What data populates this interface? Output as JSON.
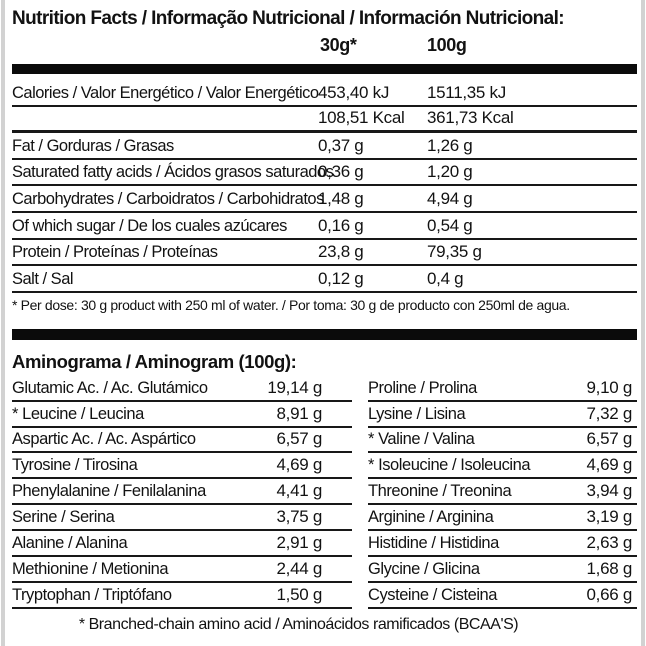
{
  "colors": {
    "bar": "#0b0b0b",
    "text": "#121212",
    "background": "#ffffff"
  },
  "label": {
    "title": "Nutrition Facts / Informação Nutricional / Información Nutricional:",
    "col_30": "30g*",
    "col_100": "100g",
    "nutrition_rows": [
      {
        "name": "Calories / Valor Energético / Valor Energético",
        "v30": "453,40 kJ",
        "v100": "1511,35 kJ"
      },
      {
        "name": "",
        "v30": "108,51 Kcal",
        "v100": "361,73 Kcal"
      },
      {
        "name": "Fat / Gorduras / Grasas",
        "v30": "0,37 g",
        "v100": "1,26 g"
      },
      {
        "name": "Saturated fatty acids / Ácidos grasos saturados",
        "v30": "0,36 g",
        "v100": "1,20 g"
      },
      {
        "name": "Carbohydrates / Carboidratos / Carbohidratos",
        "v30": "1,48 g",
        "v100": "4,94 g"
      },
      {
        "name": "Of which sugar / De los cuales azúcares",
        "v30": "0,16 g",
        "v100": "0,54 g"
      },
      {
        "name": "Protein / Proteínas / Proteínas",
        "v30": "23,8 g",
        "v100": "79,35 g"
      },
      {
        "name": "Salt / Sal",
        "v30": "0,12 g",
        "v100": "0,4 g"
      }
    ],
    "dose_note": "* Per dose: 30 g product with 250 ml of water. / Por toma: 30 g de producto con 250ml de agua.",
    "aminogram": {
      "title": "Aminograma / Aminogram (100g):",
      "left": [
        {
          "name": "Glutamic Ac. / Ac. Glutámico",
          "value": "19,14 g"
        },
        {
          "name": "* Leucine / Leucina",
          "value": "8,91 g"
        },
        {
          "name": "Aspartic Ac. / Ac. Aspártico",
          "value": "6,57 g"
        },
        {
          "name": "Tyrosine / Tirosina",
          "value": "4,69 g"
        },
        {
          "name": "Phenylalanine / Fenilalanina",
          "value": "4,41 g"
        },
        {
          "name": "Serine / Serina",
          "value": "3,75 g"
        },
        {
          "name": "Alanine / Alanina",
          "value": "2,91 g"
        },
        {
          "name": "Methionine / Metionina",
          "value": "2,44 g"
        },
        {
          "name": "Tryptophan / Triptófano",
          "value": "1,50 g"
        }
      ],
      "right": [
        {
          "name": "Proline / Prolina",
          "value": "9,10 g"
        },
        {
          "name": "Lysine / Lisina",
          "value": "7,32 g"
        },
        {
          "name": "* Valine / Valina",
          "value": "6,57 g"
        },
        {
          "name": "* Isoleucine / Isoleucina",
          "value": "4,69 g"
        },
        {
          "name": "Threonine / Treonina",
          "value": "3,94 g"
        },
        {
          "name": "Arginine / Arginina",
          "value": "3,19 g"
        },
        {
          "name": "Histidine / Histidina",
          "value": "2,63 g"
        },
        {
          "name": "Glycine / Glicina",
          "value": "1,68 g"
        },
        {
          "name": "Cysteine / Cisteina",
          "value": "0,66 g"
        }
      ],
      "note": "* Branched-chain amino acid / Aminoácidos ramificados (BCAA'S)"
    }
  }
}
